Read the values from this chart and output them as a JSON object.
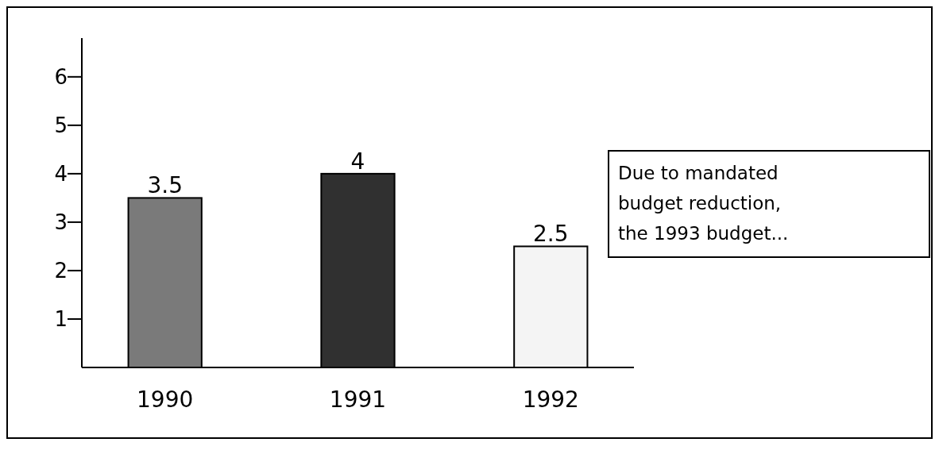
{
  "chart_data": {
    "type": "bar",
    "categories": [
      "1990",
      "1991",
      "1992"
    ],
    "values": [
      3.5,
      4,
      2.5
    ],
    "colors": [
      "#7a7a7a",
      "#303030",
      "#f4f4f4"
    ],
    "ylim": [
      0,
      6.8
    ],
    "yticks": [
      1,
      2,
      3,
      4,
      5,
      6
    ],
    "data_labels": true,
    "grid": false,
    "annotations": [
      "Due to mandated budget reduction, the 1993 budget..."
    ]
  }
}
